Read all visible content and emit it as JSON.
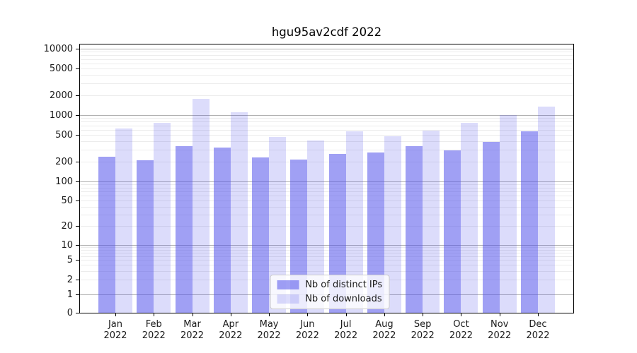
{
  "chart_data": {
    "type": "bar",
    "title": "hgu95av2cdf 2022",
    "categories": [
      "Jan",
      "Feb",
      "Mar",
      "Apr",
      "May",
      "Jun",
      "Jul",
      "Aug",
      "Sep",
      "Oct",
      "Nov",
      "Dec"
    ],
    "year_label": "2022",
    "series": [
      {
        "name": "Nb of distinct IPs",
        "color": "rgba(82,82,235,0.55)",
        "values": [
          235,
          210,
          340,
          325,
          230,
          215,
          260,
          270,
          340,
          295,
          390,
          570
        ]
      },
      {
        "name": "Nb of downloads",
        "color": "rgba(82,82,235,0.2)",
        "values": [
          630,
          760,
          1750,
          1100,
          470,
          415,
          570,
          480,
          590,
          770,
          1000,
          1350
        ]
      }
    ],
    "y_axis": {
      "scale": "symlog",
      "ticks": [
        0,
        1,
        2,
        5,
        10,
        20,
        50,
        100,
        200,
        500,
        1000,
        2000,
        5000,
        10000
      ],
      "range": [
        0,
        13000
      ]
    },
    "x_axis": {
      "tick_format": "month-over-year"
    },
    "grid": {
      "major_color": "#b0b0b0",
      "minor_color": "#ececec",
      "which": "both"
    },
    "legend": {
      "position": "lower center",
      "background": "rgba(255,255,255,0.8)",
      "border_color": "#cccccc"
    }
  }
}
